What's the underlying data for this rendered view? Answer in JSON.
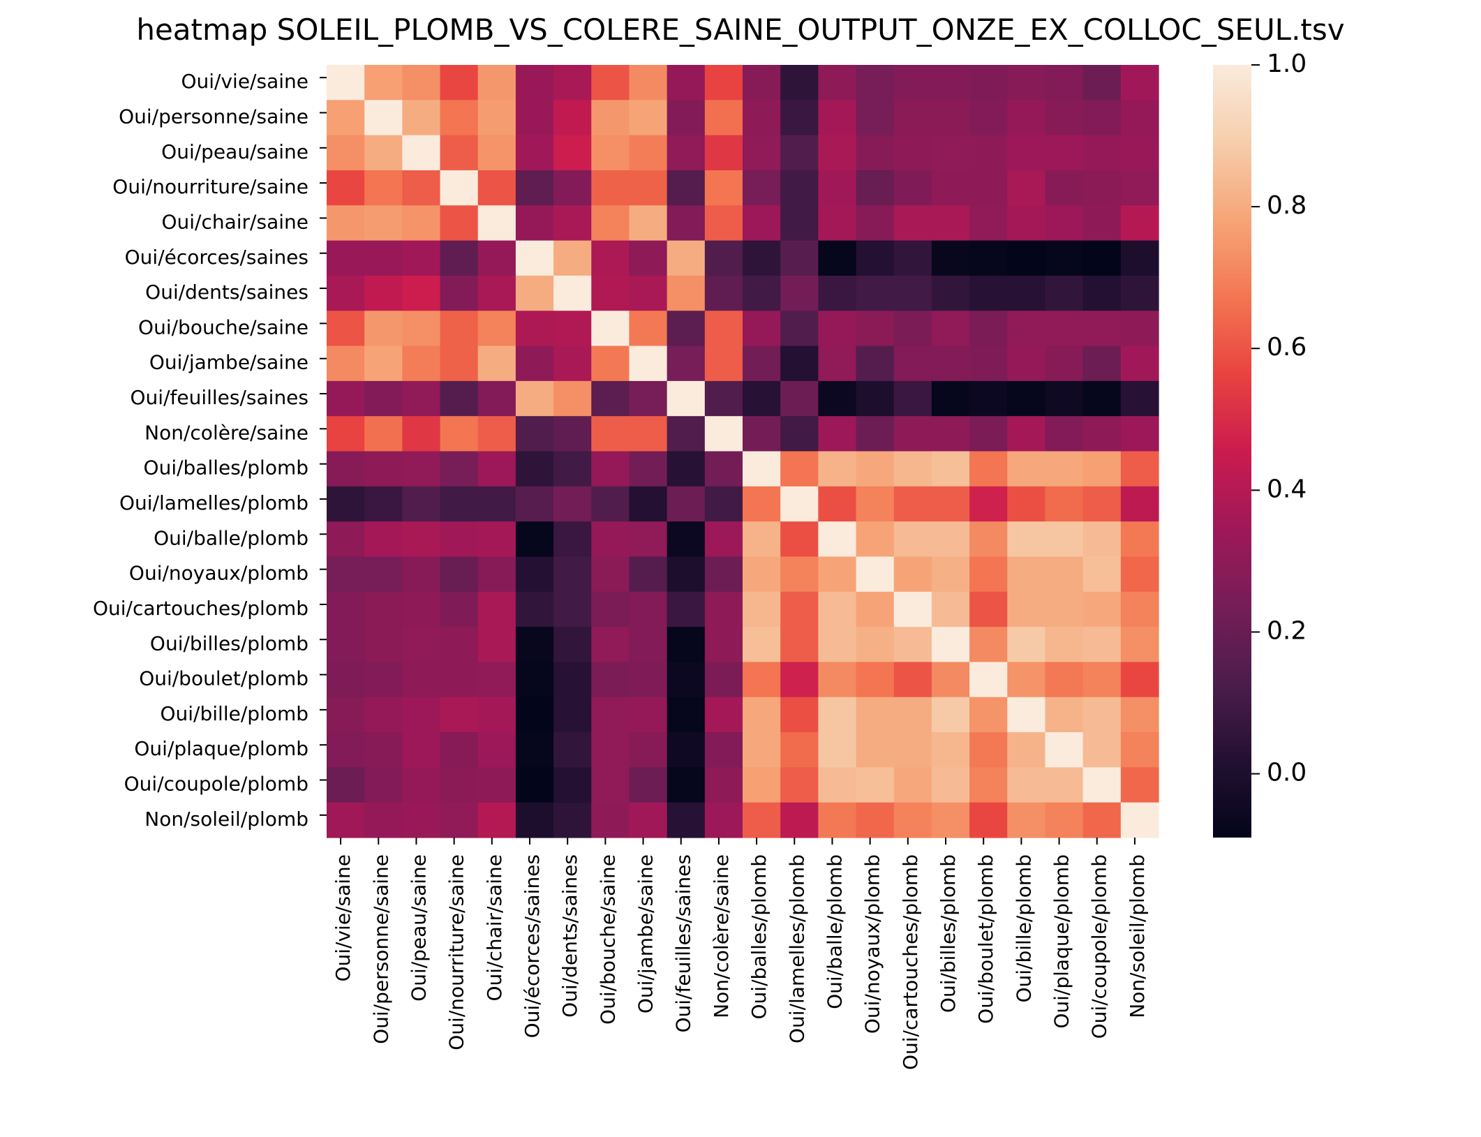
{
  "chart_data": {
    "type": "heatmap",
    "title": "heatmap SOLEIL_PLOMB_VS_COLERE_SAINE_OUTPUT_ONZE_EX_COLLOC_SEUL.tsv",
    "labels": [
      "Oui/vie/saine",
      "Oui/personne/saine",
      "Oui/peau/saine",
      "Oui/nourriture/saine",
      "Oui/chair/saine",
      "Oui/écorces/saines",
      "Oui/dents/saines",
      "Oui/bouche/saine",
      "Oui/jambe/saine",
      "Oui/feuilles/saines",
      "Non/colère/saine",
      "Oui/balles/plomb",
      "Oui/lamelles/plomb",
      "Oui/balle/plomb",
      "Oui/noyaux/plomb",
      "Oui/cartouches/plomb",
      "Oui/billes/plomb",
      "Oui/boulet/plomb",
      "Oui/bille/plomb",
      "Oui/plaque/plomb",
      "Oui/coupole/plomb",
      "Non/soleil/plomb"
    ],
    "colorbar": {
      "vmin": -0.09,
      "vmax": 1.0,
      "ticks": [
        "0.0",
        "0.2",
        "0.4",
        "0.6",
        "0.8",
        "1.0"
      ],
      "tick_values": [
        0.0,
        0.2,
        0.4,
        0.6,
        0.8,
        1.0
      ],
      "colormap": "rocket"
    },
    "matrix": [
      [
        1.0,
        0.77,
        0.73,
        0.57,
        0.75,
        0.33,
        0.37,
        0.6,
        0.72,
        0.32,
        0.56,
        0.28,
        0.05,
        0.3,
        0.24,
        0.27,
        0.27,
        0.26,
        0.28,
        0.27,
        0.21,
        0.35
      ],
      [
        0.77,
        1.0,
        0.8,
        0.67,
        0.76,
        0.33,
        0.43,
        0.75,
        0.78,
        0.27,
        0.66,
        0.3,
        0.08,
        0.36,
        0.24,
        0.29,
        0.29,
        0.27,
        0.32,
        0.28,
        0.27,
        0.32
      ],
      [
        0.73,
        0.8,
        1.0,
        0.62,
        0.74,
        0.35,
        0.46,
        0.73,
        0.69,
        0.31,
        0.53,
        0.31,
        0.14,
        0.37,
        0.28,
        0.3,
        0.31,
        0.3,
        0.34,
        0.34,
        0.32,
        0.33
      ],
      [
        0.57,
        0.67,
        0.62,
        1.0,
        0.6,
        0.18,
        0.27,
        0.63,
        0.63,
        0.15,
        0.67,
        0.24,
        0.1,
        0.35,
        0.2,
        0.26,
        0.3,
        0.3,
        0.37,
        0.28,
        0.29,
        0.31
      ],
      [
        0.75,
        0.76,
        0.74,
        0.6,
        1.0,
        0.32,
        0.37,
        0.7,
        0.8,
        0.27,
        0.62,
        0.34,
        0.1,
        0.36,
        0.28,
        0.37,
        0.37,
        0.31,
        0.36,
        0.34,
        0.3,
        0.4
      ],
      [
        0.33,
        0.33,
        0.35,
        0.18,
        0.32,
        1.0,
        0.8,
        0.38,
        0.3,
        0.8,
        0.14,
        0.05,
        0.16,
        -0.08,
        0.02,
        0.06,
        -0.07,
        -0.08,
        -0.09,
        -0.08,
        -0.09,
        0.0
      ],
      [
        0.37,
        0.43,
        0.46,
        0.27,
        0.37,
        0.8,
        1.0,
        0.39,
        0.37,
        0.73,
        0.18,
        0.1,
        0.23,
        0.08,
        0.1,
        0.1,
        0.06,
        0.03,
        0.03,
        0.06,
        0.02,
        0.05
      ],
      [
        0.6,
        0.75,
        0.73,
        0.63,
        0.7,
        0.38,
        0.39,
        1.0,
        0.68,
        0.17,
        0.62,
        0.32,
        0.14,
        0.32,
        0.29,
        0.25,
        0.31,
        0.25,
        0.31,
        0.31,
        0.31,
        0.3
      ],
      [
        0.72,
        0.78,
        0.69,
        0.63,
        0.8,
        0.3,
        0.37,
        0.68,
        1.0,
        0.24,
        0.62,
        0.23,
        0.02,
        0.31,
        0.15,
        0.27,
        0.27,
        0.26,
        0.32,
        0.28,
        0.21,
        0.35
      ],
      [
        0.32,
        0.27,
        0.31,
        0.15,
        0.27,
        0.8,
        0.73,
        0.17,
        0.24,
        1.0,
        0.14,
        0.03,
        0.21,
        -0.06,
        0.0,
        0.08,
        -0.08,
        -0.06,
        -0.08,
        -0.05,
        -0.08,
        0.03
      ],
      [
        0.56,
        0.66,
        0.53,
        0.67,
        0.62,
        0.14,
        0.18,
        0.62,
        0.62,
        0.14,
        1.0,
        0.23,
        0.1,
        0.34,
        0.21,
        0.3,
        0.3,
        0.25,
        0.36,
        0.27,
        0.3,
        0.34
      ],
      [
        0.28,
        0.3,
        0.31,
        0.24,
        0.34,
        0.05,
        0.1,
        0.32,
        0.23,
        0.03,
        0.23,
        1.0,
        0.67,
        0.82,
        0.79,
        0.83,
        0.85,
        0.67,
        0.79,
        0.79,
        0.77,
        0.62
      ],
      [
        0.05,
        0.08,
        0.14,
        0.1,
        0.1,
        0.16,
        0.23,
        0.14,
        0.02,
        0.21,
        0.1,
        0.67,
        1.0,
        0.59,
        0.7,
        0.62,
        0.62,
        0.47,
        0.59,
        0.65,
        0.62,
        0.42
      ],
      [
        0.3,
        0.36,
        0.37,
        0.35,
        0.36,
        -0.08,
        0.08,
        0.32,
        0.31,
        -0.06,
        0.34,
        0.82,
        0.59,
        1.0,
        0.78,
        0.84,
        0.84,
        0.72,
        0.87,
        0.87,
        0.84,
        0.68
      ],
      [
        0.24,
        0.24,
        0.28,
        0.2,
        0.28,
        0.02,
        0.1,
        0.29,
        0.15,
        0.0,
        0.21,
        0.79,
        0.7,
        0.78,
        1.0,
        0.78,
        0.81,
        0.67,
        0.8,
        0.8,
        0.85,
        0.64
      ],
      [
        0.27,
        0.29,
        0.3,
        0.26,
        0.37,
        0.06,
        0.1,
        0.25,
        0.27,
        0.08,
        0.3,
        0.83,
        0.62,
        0.84,
        0.78,
        1.0,
        0.84,
        0.6,
        0.8,
        0.8,
        0.79,
        0.7
      ],
      [
        0.27,
        0.29,
        0.31,
        0.3,
        0.37,
        -0.07,
        0.06,
        0.31,
        0.27,
        -0.08,
        0.3,
        0.85,
        0.62,
        0.84,
        0.81,
        0.84,
        1.0,
        0.72,
        0.88,
        0.83,
        0.84,
        0.73
      ],
      [
        0.26,
        0.27,
        0.3,
        0.3,
        0.31,
        -0.08,
        0.03,
        0.25,
        0.26,
        -0.06,
        0.25,
        0.67,
        0.47,
        0.72,
        0.67,
        0.6,
        0.72,
        1.0,
        0.74,
        0.68,
        0.7,
        0.57
      ],
      [
        0.28,
        0.32,
        0.34,
        0.37,
        0.36,
        -0.09,
        0.03,
        0.31,
        0.32,
        -0.08,
        0.36,
        0.79,
        0.59,
        0.87,
        0.8,
        0.8,
        0.88,
        0.74,
        1.0,
        0.82,
        0.84,
        0.73
      ],
      [
        0.27,
        0.28,
        0.34,
        0.28,
        0.34,
        -0.08,
        0.06,
        0.31,
        0.28,
        -0.05,
        0.27,
        0.79,
        0.65,
        0.87,
        0.8,
        0.8,
        0.83,
        0.68,
        0.82,
        1.0,
        0.84,
        0.7
      ],
      [
        0.21,
        0.27,
        0.32,
        0.29,
        0.3,
        -0.09,
        0.02,
        0.31,
        0.21,
        -0.08,
        0.3,
        0.77,
        0.62,
        0.84,
        0.85,
        0.79,
        0.84,
        0.7,
        0.84,
        0.84,
        1.0,
        0.64
      ],
      [
        0.35,
        0.32,
        0.33,
        0.31,
        0.4,
        0.0,
        0.05,
        0.3,
        0.35,
        0.03,
        0.34,
        0.62,
        0.42,
        0.68,
        0.64,
        0.7,
        0.73,
        0.57,
        0.73,
        0.7,
        0.64,
        1.0
      ]
    ]
  }
}
